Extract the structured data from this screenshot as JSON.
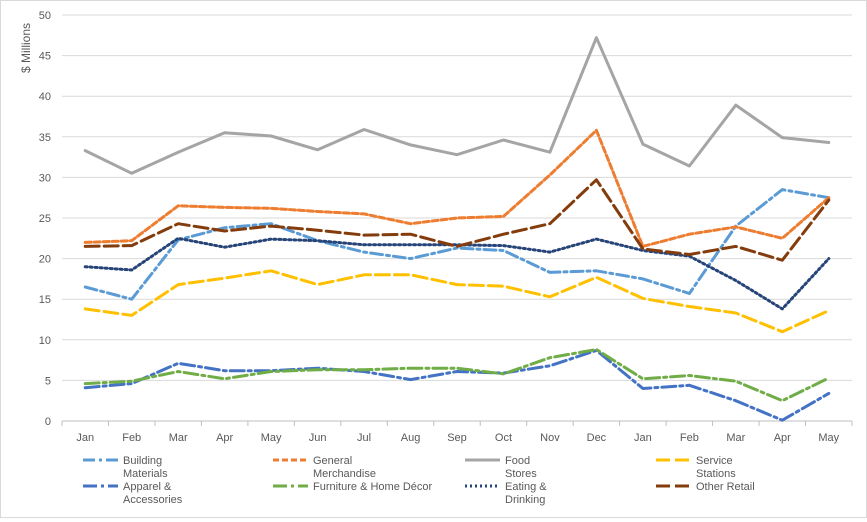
{
  "chart_data": {
    "type": "line",
    "title": "",
    "xlabel": "",
    "ylabel": "$ Millions",
    "ylim": [
      0,
      50
    ],
    "yticks": [
      0,
      5,
      10,
      15,
      20,
      25,
      30,
      35,
      40,
      45,
      50
    ],
    "grid": "horizontal",
    "legend_position": "bottom",
    "categories": [
      "Jan",
      "Feb",
      "Mar",
      "Apr",
      "May",
      "Jun",
      "Jul",
      "Aug",
      "Sep",
      "Oct",
      "Nov",
      "Dec",
      "Jan",
      "Feb",
      "Mar",
      "Apr",
      "May"
    ],
    "series": [
      {
        "name": "Building Materials",
        "name_lines": [
          "Building",
          "Materials"
        ],
        "color": "#5B9BD5",
        "dash": "12,4,3,4",
        "width": 3,
        "values": [
          16.5,
          15.0,
          22.3,
          23.8,
          24.3,
          22.2,
          20.8,
          20.0,
          21.3,
          21.0,
          18.3,
          18.5,
          17.5,
          15.7,
          24.0,
          28.5,
          27.5
        ]
      },
      {
        "name": "General Merchandise",
        "name_lines": [
          "General",
          "Merchandise"
        ],
        "color": "#ED7D31",
        "dash": "6,3",
        "width": 3,
        "values": [
          22.0,
          22.2,
          26.5,
          26.3,
          26.2,
          25.8,
          25.5,
          24.3,
          25.0,
          25.2,
          30.3,
          35.8,
          21.5,
          23.0,
          23.9,
          22.5,
          27.5
        ]
      },
      {
        "name": "Food Stores",
        "name_lines": [
          "Food",
          "Stores"
        ],
        "color": "#A5A5A5",
        "dash": "",
        "width": 3,
        "values": [
          33.3,
          30.5,
          33.1,
          35.5,
          35.1,
          33.4,
          35.9,
          34.0,
          32.8,
          34.6,
          33.1,
          47.2,
          34.1,
          31.4,
          38.9,
          34.9,
          34.3
        ]
      },
      {
        "name": "Service Stations",
        "name_lines": [
          "Service",
          "Stations"
        ],
        "color": "#FFC000",
        "dash": "14,5",
        "width": 3,
        "values": [
          13.8,
          13.0,
          16.8,
          17.6,
          18.5,
          16.8,
          18.0,
          18.0,
          16.8,
          16.6,
          15.3,
          17.7,
          15.1,
          14.1,
          13.3,
          11.0,
          13.6
        ]
      },
      {
        "name": "Apparel & Accessories",
        "name_lines": [
          "Apparel &",
          "Accessories"
        ],
        "color": "#4472C4",
        "dash": "14,4,3,4",
        "width": 3,
        "values": [
          4.1,
          4.6,
          7.1,
          6.2,
          6.2,
          6.5,
          6.1,
          5.1,
          6.1,
          5.9,
          6.8,
          8.7,
          4.0,
          4.4,
          2.5,
          0.1,
          3.4
        ]
      },
      {
        "name": "Furniture & Home Décor",
        "name_lines": [
          "Furniture & Home Décor"
        ],
        "color": "#70AD47",
        "dash": "14,4,3,4",
        "width": 3,
        "values": [
          4.6,
          4.9,
          6.1,
          5.2,
          6.1,
          6.3,
          6.3,
          6.5,
          6.5,
          5.8,
          7.8,
          8.8,
          5.2,
          5.6,
          4.9,
          2.5,
          5.3
        ]
      },
      {
        "name": "Eating & Drinking",
        "name_lines": [
          "Eating &",
          "Drinking"
        ],
        "color": "#264478",
        "dash": "2,3",
        "width": 3,
        "values": [
          19.0,
          18.6,
          22.5,
          21.4,
          22.4,
          22.2,
          21.7,
          21.7,
          21.7,
          21.6,
          20.8,
          22.4,
          21.0,
          20.3,
          17.3,
          13.8,
          20.0
        ]
      },
      {
        "name": "Other Retail",
        "name_lines": [
          "Other Retail"
        ],
        "color": "#843C0C",
        "dash": "14,5",
        "width": 3,
        "values": [
          21.5,
          21.6,
          24.3,
          23.4,
          24.0,
          23.5,
          22.9,
          23.0,
          21.5,
          23.0,
          24.3,
          29.7,
          21.2,
          20.5,
          21.5,
          19.8,
          27.2
        ]
      }
    ]
  }
}
